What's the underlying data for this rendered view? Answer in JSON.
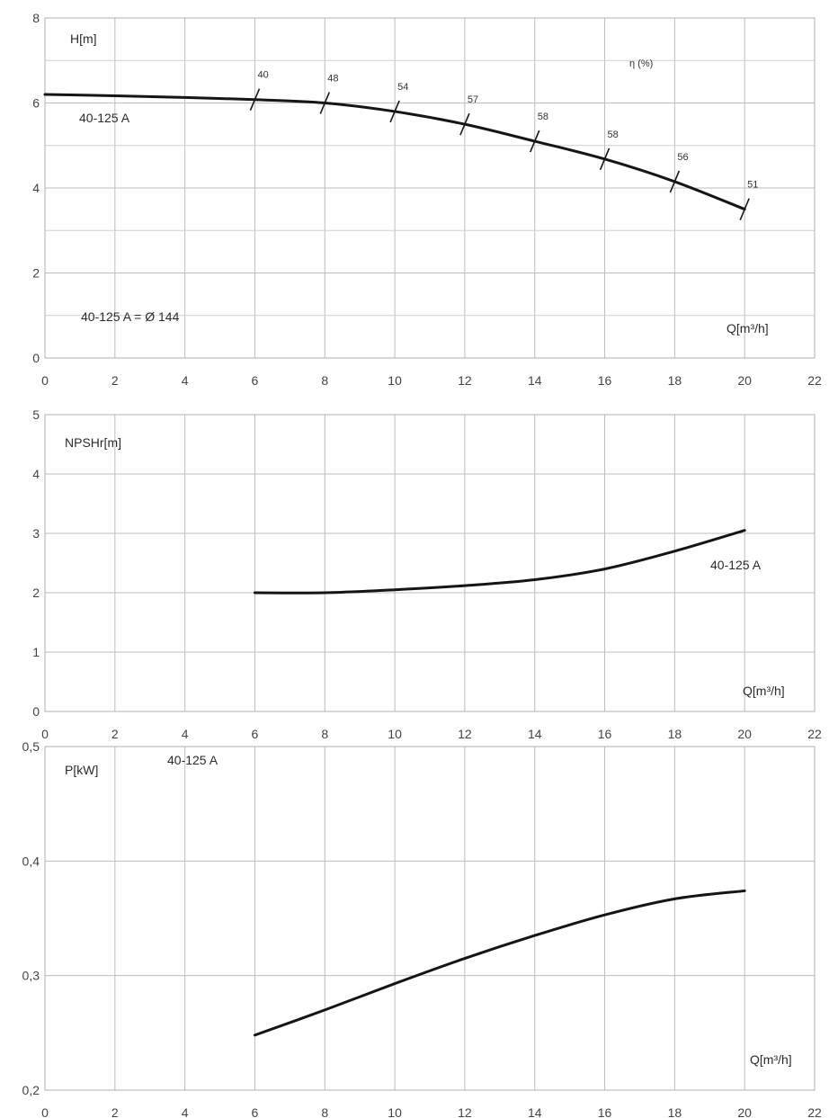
{
  "chart_data": [
    {
      "type": "line",
      "ylabel": "H[m]",
      "xlabel": "Q[m³/h]",
      "eta_label": "η (%)",
      "curve_label": "40-125 A",
      "note": "40-125 A  = Ø 144",
      "xlim": [
        0,
        22
      ],
      "ylim": [
        0,
        8
      ],
      "x_ticks": [
        "0",
        "2",
        "4",
        "6",
        "8",
        "10",
        "12",
        "14",
        "16",
        "18",
        "20",
        "22"
      ],
      "y_ticks": [
        "0",
        "2",
        "4",
        "6",
        "8"
      ],
      "grid": true,
      "series": [
        {
          "x": [
            0,
            2,
            4,
            6,
            8,
            10,
            12,
            14,
            16,
            18,
            20
          ],
          "y": [
            6.2,
            6.17,
            6.13,
            6.08,
            6.0,
            5.8,
            5.5,
            5.1,
            4.68,
            4.15,
            3.5
          ]
        }
      ],
      "efficiency_marks": [
        {
          "x": 6,
          "y": 6.08,
          "label": "40"
        },
        {
          "x": 8,
          "y": 6.0,
          "label": "48"
        },
        {
          "x": 10,
          "y": 5.8,
          "label": "54"
        },
        {
          "x": 12,
          "y": 5.5,
          "label": "57"
        },
        {
          "x": 14,
          "y": 5.1,
          "label": "58"
        },
        {
          "x": 16,
          "y": 4.68,
          "label": "58"
        },
        {
          "x": 18,
          "y": 4.15,
          "label": "56"
        },
        {
          "x": 20,
          "y": 3.5,
          "label": "51"
        }
      ]
    },
    {
      "type": "line",
      "ylabel": "NPSHr[m]",
      "xlabel": "Q[m³/h]",
      "curve_label": "40-125 A",
      "xlim": [
        0,
        22
      ],
      "ylim": [
        0,
        5
      ],
      "x_ticks": [
        "0",
        "2",
        "4",
        "6",
        "8",
        "10",
        "12",
        "14",
        "16",
        "18",
        "20",
        "22"
      ],
      "y_ticks": [
        "0",
        "1",
        "2",
        "3",
        "4",
        "5"
      ],
      "grid": true,
      "series": [
        {
          "x": [
            6,
            8,
            10,
            12,
            14,
            16,
            18,
            20
          ],
          "y": [
            2.0,
            2.0,
            2.05,
            2.12,
            2.22,
            2.4,
            2.7,
            3.05
          ]
        }
      ]
    },
    {
      "type": "line",
      "ylabel": "P[kW]",
      "xlabel": "Q[m³/h]",
      "curve_label": "40-125 A",
      "xlim": [
        0,
        22
      ],
      "ylim": [
        0.2,
        0.5
      ],
      "x_ticks": [
        "0",
        "2",
        "4",
        "6",
        "8",
        "10",
        "12",
        "14",
        "16",
        "18",
        "20",
        "22"
      ],
      "y_ticks": [
        "0,2",
        "0,3",
        "0,4",
        "0,5"
      ],
      "grid": true,
      "series": [
        {
          "x": [
            6,
            8,
            10,
            12,
            14,
            16,
            18,
            20
          ],
          "y": [
            0.248,
            0.27,
            0.293,
            0.315,
            0.335,
            0.353,
            0.367,
            0.374
          ]
        }
      ]
    }
  ]
}
